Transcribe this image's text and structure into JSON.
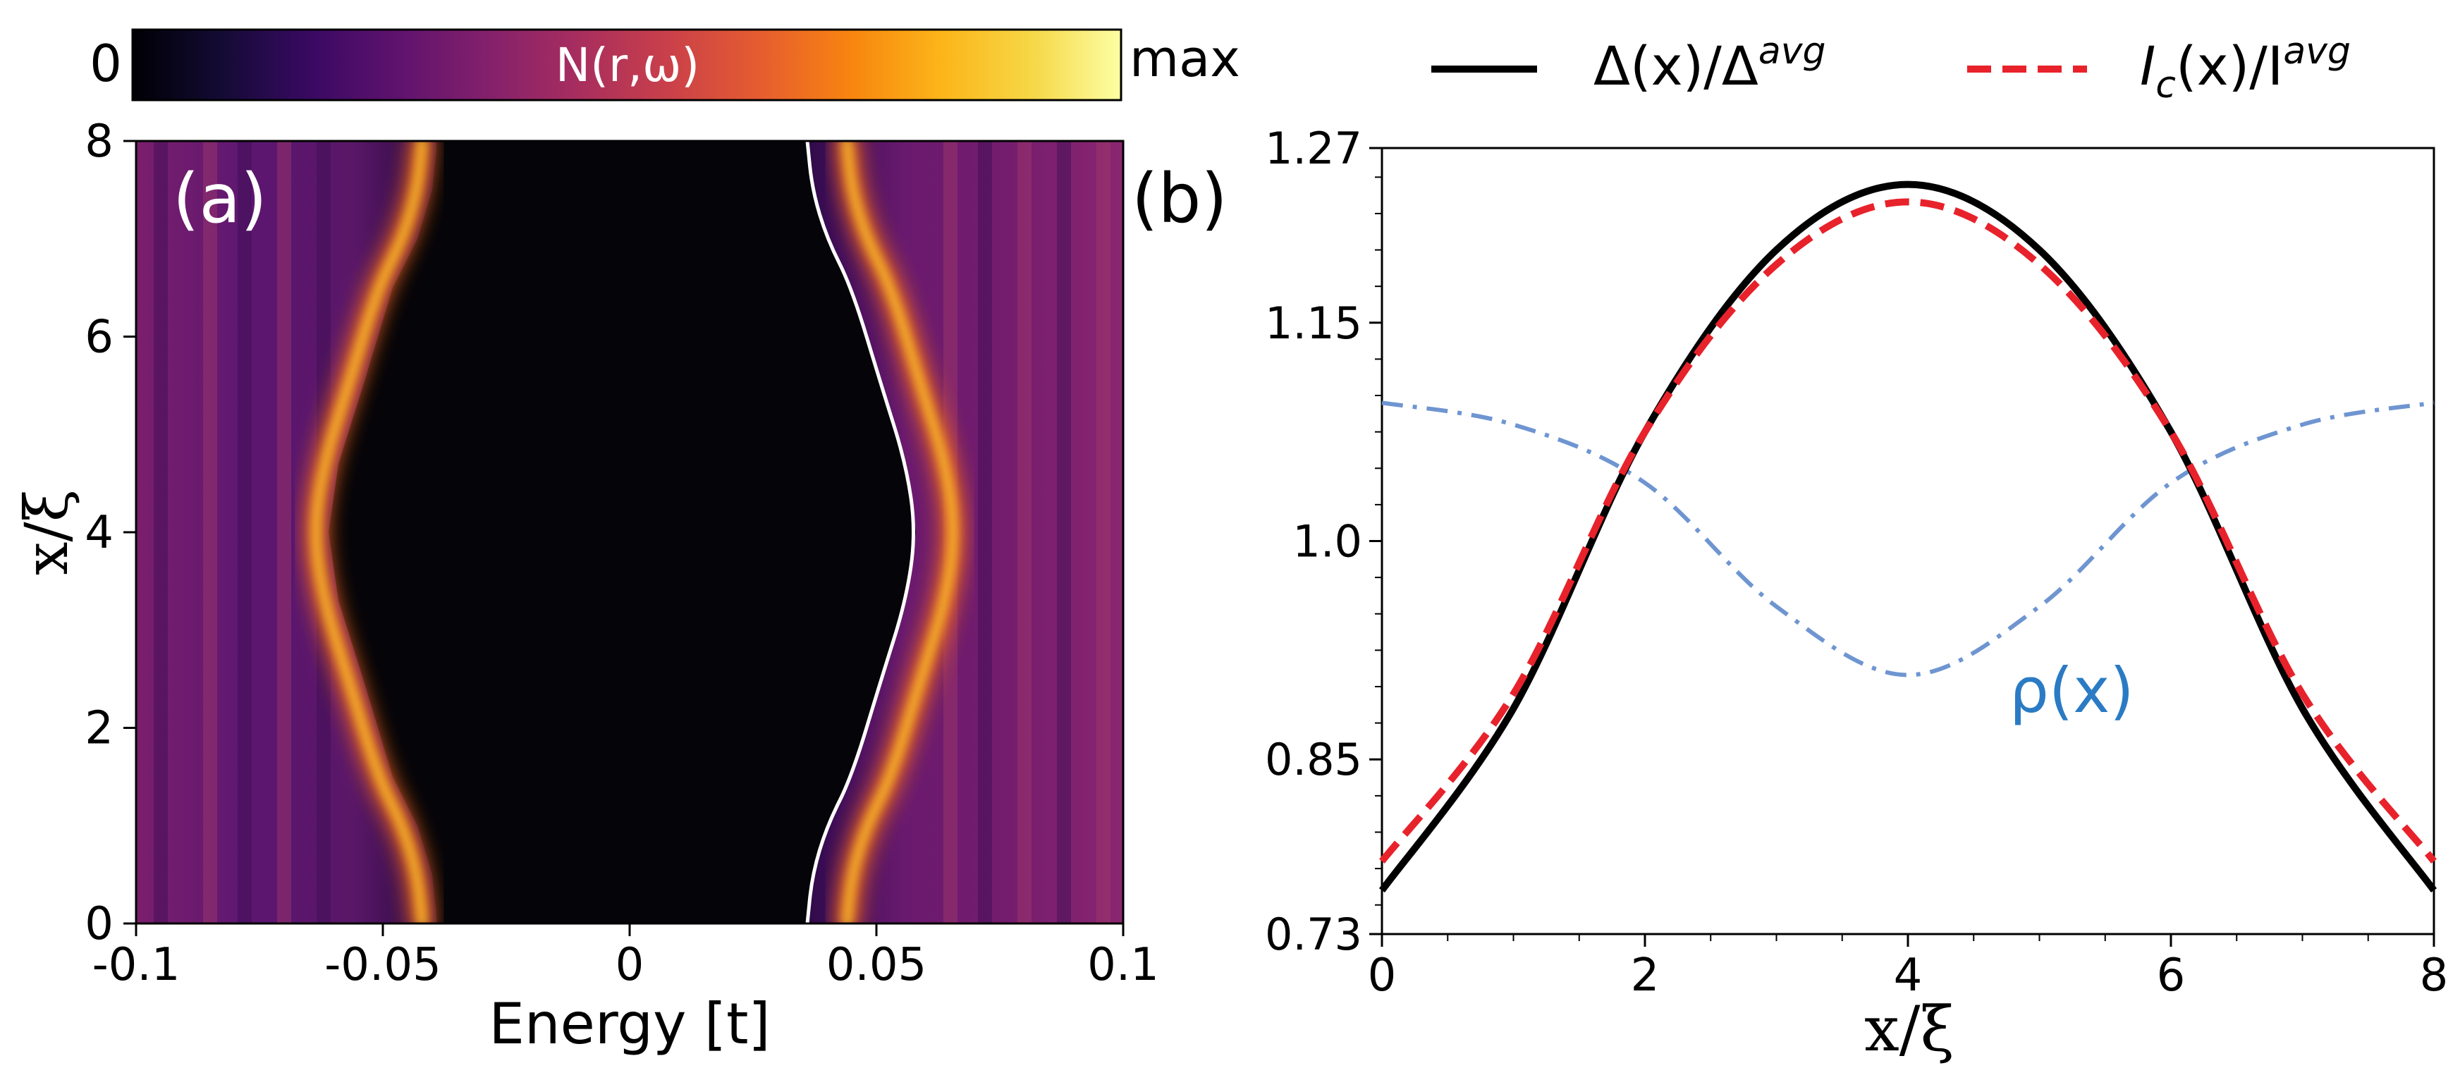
{
  "colorbar": {
    "min_label": "0",
    "max_label": "max",
    "title": "N(r,ω)",
    "colormap": "inferno",
    "stops": [
      "#000004",
      "#140b35",
      "#3a0963",
      "#60136e",
      "#85216b",
      "#a92e5e",
      "#cb4149",
      "#e65d2f",
      "#f8850f",
      "#fcb519",
      "#f6d746",
      "#fcffa4"
    ]
  },
  "panel_a": {
    "label": "(a)",
    "xlabel": "Energy [t]",
    "ylabel": "x/ξ",
    "xlim": [
      -0.1,
      0.1
    ],
    "ylim": [
      0,
      8
    ],
    "xticks": [
      "-0.1",
      "-0.05",
      "0",
      "0.05",
      "0.1"
    ],
    "yticks": [
      "0",
      "2",
      "4",
      "6",
      "8"
    ],
    "curve_color": "#ffffff"
  },
  "panel_b": {
    "label": "(b)",
    "xlabel": "x/ξ",
    "xlim": [
      0,
      8
    ],
    "ylim": [
      0.73,
      1.27
    ],
    "xticks": [
      "0",
      "2",
      "4",
      "6",
      "8"
    ],
    "yticks": [
      "0.73",
      "0.85",
      "1.0",
      "1.15",
      "1.27"
    ],
    "legend": {
      "placement": "top, above the axes",
      "delta_label": "Δ(x)/Δ",
      "delta_sup": "avg",
      "ic_label_i": "I",
      "ic_sub": "c",
      "ic_mid": "(x)/I",
      "ic_sup": "avg"
    },
    "rho_annotation": "ρ(x)",
    "colors": {
      "delta": "#000000",
      "ic": "#e8222b",
      "rho": "#6f95d1",
      "rho_text": "#2a7bc4"
    }
  },
  "chart_data": [
    {
      "type": "heatmap",
      "panel": "(a)",
      "title": "N(r,ω)",
      "xlabel": "Energy [t]",
      "ylabel": "x/ξ",
      "xlim": [
        -0.1,
        0.1
      ],
      "ylim": [
        0,
        8
      ],
      "series": [
        {
          "name": "gap edge",
          "x": [
            0.036,
            0.037,
            0.04,
            0.045,
            0.051,
            0.056,
            0.058,
            0.056,
            0.051,
            0.045,
            0.04,
            0.037,
            0.036
          ],
          "y": [
            0,
            0.5,
            1,
            1.5,
            2.5,
            3.3,
            4,
            4.7,
            5.5,
            6.5,
            7,
            7.5,
            8
          ]
        }
      ]
    },
    {
      "type": "line",
      "panel": "(b)",
      "xlabel": "x/ξ",
      "xlim": [
        0,
        8
      ],
      "ylim": [
        0.73,
        1.27
      ],
      "x": [
        0,
        1,
        2,
        3,
        4,
        5,
        6,
        7,
        8
      ],
      "series": [
        {
          "name": "Δ(x)/Δ^avg",
          "style": "solid",
          "values": [
            0.76,
            0.885,
            1.075,
            1.2,
            1.245,
            1.2,
            1.075,
            0.885,
            0.76
          ]
        },
        {
          "name": "I_c(x)/I_c^avg",
          "style": "dashed",
          "values": [
            0.78,
            0.895,
            1.075,
            1.19,
            1.233,
            1.19,
            1.075,
            0.895,
            0.78
          ]
        },
        {
          "name": "ρ(x)",
          "style": "dashdot",
          "values": [
            1.095,
            1.08,
            1.04,
            0.955,
            0.908,
            0.955,
            1.04,
            1.08,
            1.095
          ]
        }
      ]
    }
  ]
}
